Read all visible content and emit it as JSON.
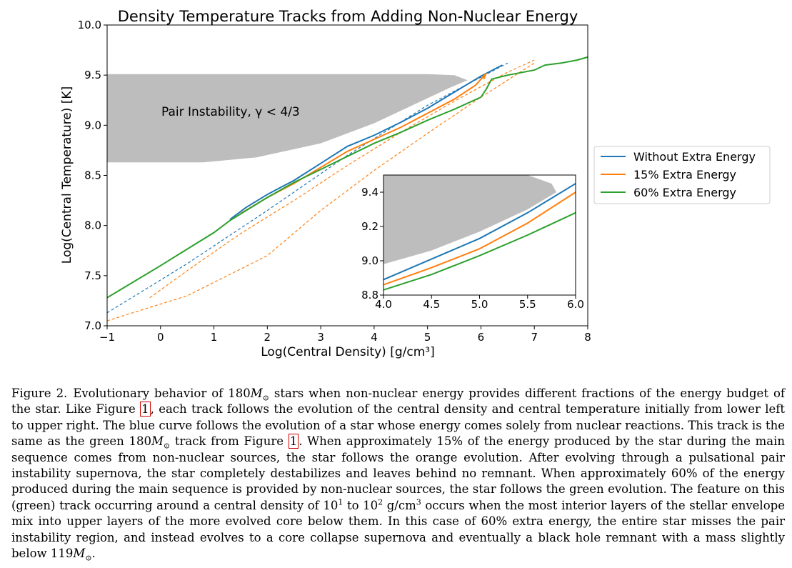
{
  "chart_data": {
    "type": "line",
    "title": "Density Temperature Tracks from Adding Non-Nuclear Energy",
    "xlabel": "Log(Central Density) [g/cm³]",
    "ylabel": "Log(Central Temperature) [K]",
    "xlim": [
      -1,
      8
    ],
    "ylim": [
      7.0,
      10.0
    ],
    "xticks": [
      "−1",
      "0",
      "1",
      "2",
      "3",
      "4",
      "5",
      "6",
      "7",
      "8"
    ],
    "yticks": [
      "7.0",
      "7.5",
      "8.0",
      "8.5",
      "9.0",
      "9.5",
      "10.0"
    ],
    "grid": false,
    "legend_position": "right, outside plot",
    "region_label": "Pair Instability, γ < 4/3",
    "pair_instability_region": {
      "upper_boundary": [
        [
          -1,
          9.51
        ],
        [
          5.0,
          9.51
        ],
        [
          5.5,
          9.5
        ],
        [
          5.75,
          9.45
        ]
      ],
      "lower_boundary": [
        [
          -1,
          8.63
        ],
        [
          0.8,
          8.63
        ],
        [
          1.8,
          8.68
        ],
        [
          3.0,
          8.82
        ],
        [
          4.0,
          9.02
        ],
        [
          4.8,
          9.22
        ],
        [
          5.4,
          9.37
        ],
        [
          5.75,
          9.45
        ]
      ]
    },
    "series": [
      {
        "name": "Without Extra Energy",
        "color": "#1f77b4",
        "solid": [
          [
            1.3,
            8.06
          ],
          [
            1.6,
            8.18
          ],
          [
            2.0,
            8.31
          ],
          [
            2.5,
            8.45
          ],
          [
            3.0,
            8.62
          ],
          [
            3.5,
            8.79
          ],
          [
            4.0,
            8.9
          ],
          [
            4.5,
            9.03
          ],
          [
            5.0,
            9.17
          ],
          [
            5.5,
            9.33
          ],
          [
            6.0,
            9.49
          ],
          [
            6.4,
            9.6
          ]
        ],
        "dashed": [
          [
            -1,
            7.13
          ],
          [
            0.5,
            7.62
          ],
          [
            2.0,
            8.15
          ],
          [
            3.5,
            8.7
          ],
          [
            5.0,
            9.2
          ],
          [
            6.5,
            9.62
          ]
        ]
      },
      {
        "name": "15% Extra Energy",
        "color": "#ff7f0e",
        "solid": [
          [
            1.5,
            8.12
          ],
          [
            2.0,
            8.28
          ],
          [
            2.5,
            8.42
          ],
          [
            3.0,
            8.58
          ],
          [
            3.5,
            8.74
          ],
          [
            4.0,
            8.86
          ],
          [
            4.5,
            8.98
          ],
          [
            5.0,
            9.12
          ],
          [
            5.5,
            9.26
          ],
          [
            5.9,
            9.4
          ],
          [
            6.1,
            9.52
          ],
          [
            6.05,
            9.46
          ]
        ],
        "dashed": [
          [
            -0.2,
            7.28
          ],
          [
            0.5,
            7.55
          ],
          [
            1.5,
            7.92
          ],
          [
            2.5,
            8.25
          ],
          [
            3.5,
            8.6
          ],
          [
            4.5,
            8.93
          ],
          [
            5.5,
            9.24
          ],
          [
            6.5,
            9.53
          ],
          [
            7.0,
            9.65
          ]
        ],
        "dashed_lower": [
          [
            -1,
            7.05
          ],
          [
            0.5,
            7.3
          ],
          [
            2.0,
            7.7
          ],
          [
            3.0,
            8.15
          ],
          [
            4.0,
            8.55
          ],
          [
            5.0,
            8.92
          ],
          [
            6.0,
            9.28
          ],
          [
            7.0,
            9.62
          ]
        ]
      },
      {
        "name": "60% Extra Energy",
        "color": "#2ca02c",
        "solid": [
          [
            -1,
            7.28
          ],
          [
            0.0,
            7.6
          ],
          [
            1.0,
            7.93
          ],
          [
            1.3,
            8.05
          ],
          [
            2.0,
            8.28
          ],
          [
            2.5,
            8.43
          ],
          [
            3.0,
            8.56
          ],
          [
            3.5,
            8.69
          ],
          [
            4.0,
            8.82
          ],
          [
            4.5,
            8.93
          ],
          [
            5.0,
            9.05
          ],
          [
            5.5,
            9.16
          ],
          [
            6.0,
            9.28
          ],
          [
            6.1,
            9.36
          ],
          [
            6.2,
            9.46
          ],
          [
            6.5,
            9.5
          ],
          [
            7.0,
            9.55
          ],
          [
            7.2,
            9.6
          ],
          [
            7.5,
            9.62
          ],
          [
            7.8,
            9.65
          ],
          [
            8.0,
            9.68
          ]
        ]
      }
    ],
    "inset": {
      "xlim": [
        4.0,
        6.0
      ],
      "ylim": [
        8.8,
        9.5
      ],
      "xticks": [
        "4.0",
        "4.5",
        "5.0",
        "5.5",
        "6.0"
      ],
      "yticks": [
        "8.8",
        "9.0",
        "9.2",
        "9.4"
      ],
      "pair_instability_lower": [
        [
          4.0,
          8.98
        ],
        [
          4.5,
          9.06
        ],
        [
          5.0,
          9.17
        ],
        [
          5.5,
          9.3
        ],
        [
          5.8,
          9.4
        ],
        [
          5.75,
          9.45
        ],
        [
          5.5,
          9.5
        ]
      ],
      "series": [
        {
          "color": "#1f77b4",
          "points": [
            [
              4.0,
              8.89
            ],
            [
              4.5,
              9.01
            ],
            [
              5.0,
              9.13
            ],
            [
              5.5,
              9.28
            ],
            [
              6.0,
              9.45
            ]
          ]
        },
        {
          "color": "#ff7f0e",
          "points": [
            [
              4.0,
              8.86
            ],
            [
              4.5,
              8.96
            ],
            [
              5.0,
              9.07
            ],
            [
              5.5,
              9.22
            ],
            [
              6.0,
              9.4
            ]
          ]
        },
        {
          "color": "#2ca02c",
          "points": [
            [
              4.0,
              8.83
            ],
            [
              4.5,
              8.92
            ],
            [
              5.0,
              9.03
            ],
            [
              5.5,
              9.15
            ],
            [
              6.0,
              9.28
            ]
          ]
        }
      ]
    }
  },
  "caption": {
    "label": "Figure 2.",
    "p1": "Evolutionary behavior of 180",
    "p2": " stars when non-nuclear energy provides different fractions of the energy budget of the star. Like Figure ",
    "ref1": "1",
    "p3": ", each track follows the evolution of the central density and central temperature initially from lower left to upper right. The blue curve follows the evolution of a star whose energy comes solely from nuclear reactions. This track is the same as the green 180",
    "p4": " track from Figure ",
    "ref2": "1",
    "p5": ". When approximately 15% of the energy produced by the star during the main sequence comes from non-nuclear sources, the star follows the orange evolution. After evolving through a pulsational pair instability supernova, the star completely destabilizes and leaves behind no remnant. When approximately 60% of the energy produced during the main sequence is provided by non-nuclear sources, the star follows the green evolution. The feature on this (green) track occurring around a central density of 10",
    "sup1": "1",
    "p6": " to 10",
    "sup2": "2",
    "p7": " g/cm",
    "sup3": "3",
    "p8": " occurs when the most interior layers of the stellar envelope mix into upper layers of the more evolved core below them. In this case of 60% extra energy, the entire star misses the pair instability region, and instead evolves to a core collapse supernova and eventually a black hole remnant with a mass slightly below 119",
    "p9": ".",
    "mass_symbol": "M",
    "sun_symbol": "⊙"
  }
}
